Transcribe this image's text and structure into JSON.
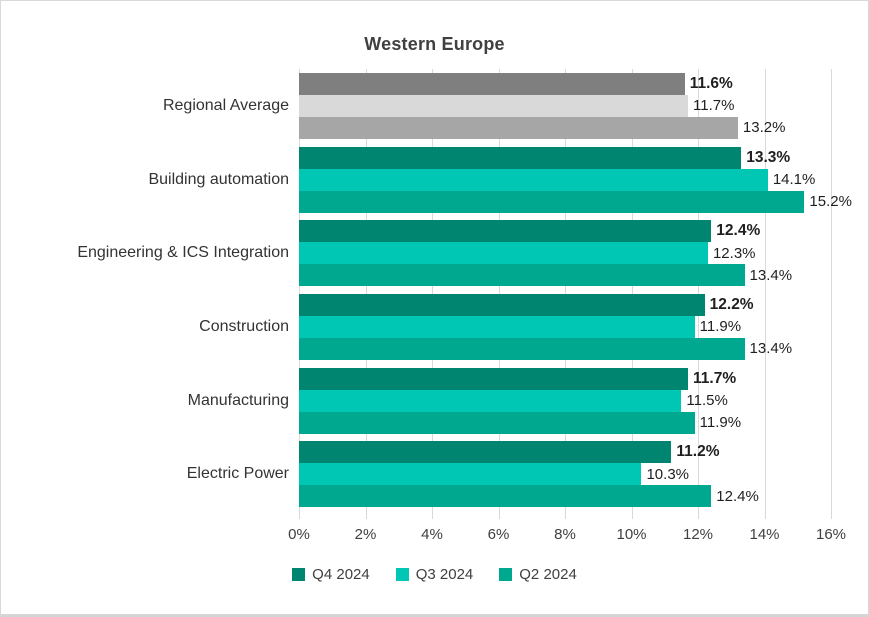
{
  "frame": {
    "background": "#FFFFFF",
    "border_color": "#D9D9D9"
  },
  "chart_data": {
    "type": "bar",
    "orientation": "horizontal",
    "title": "Western Europe",
    "categories": [
      "Regional Average",
      "Building automation",
      "Engineering & ICS Integration",
      "Construction",
      "Manufacturing",
      "Electric Power"
    ],
    "series": [
      {
        "name": "Q4 2024",
        "color": "#008571",
        "values": [
          11.6,
          13.3,
          12.4,
          12.2,
          11.7,
          11.2
        ],
        "bold_labels": true
      },
      {
        "name": "Q3 2024",
        "color": "#00C7B3",
        "values": [
          11.7,
          14.1,
          12.3,
          11.9,
          11.5,
          10.3
        ],
        "bold_labels": false
      },
      {
        "name": "Q2 2024",
        "color": "#00A88F",
        "values": [
          13.2,
          15.2,
          13.4,
          13.4,
          11.9,
          12.4
        ],
        "bold_labels": false
      }
    ],
    "category_color_overrides": {
      "Regional Average": [
        "#7F7F7F",
        "#D9D9D9",
        "#A6A6A6"
      ]
    },
    "value_label_suffix": "%",
    "value_label_decimals": 1,
    "xlim": [
      0,
      16
    ],
    "x_ticks": [
      "0%",
      "2%",
      "4%",
      "6%",
      "8%",
      "10%",
      "12%",
      "14%",
      "16%"
    ],
    "gridlines": true,
    "gridline_color": "#D9D9D9",
    "legend_position": "bottom",
    "text_color": "#404040",
    "value_text_color": "#1F1F1F"
  }
}
